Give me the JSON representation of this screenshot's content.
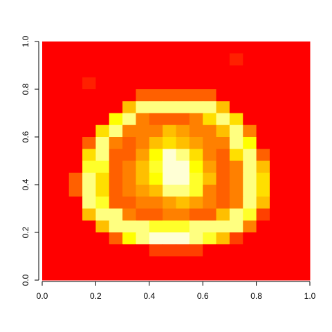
{
  "chart_data": {
    "type": "heatmap",
    "xlim": [
      0,
      1
    ],
    "ylim": [
      0,
      1
    ],
    "xticks": [
      {
        "value": 0,
        "label": "0.0"
      },
      0.2,
      0.4,
      0.6,
      0.8,
      {
        "value": 1,
        "label": "1.0"
      }
    ],
    "yticks": [
      {
        "value": 0,
        "label": "0.0"
      },
      0.2,
      0.4,
      0.6,
      0.8,
      {
        "value": 1,
        "label": "1.0"
      }
    ],
    "colors": [
      "#FF0000",
      "#FF2000",
      "#FF4000",
      "#FF6000",
      "#FF8000",
      "#FF9F00",
      "#FFBF00",
      "#FFDF00",
      "#FFFF00",
      "#FFFF2A",
      "#FFFF80",
      "#FFFFD5"
    ],
    "z": [
      [
        0,
        0,
        0,
        0,
        0,
        0,
        0,
        0,
        0,
        0,
        0,
        0,
        0,
        0,
        0,
        0,
        0,
        0,
        0,
        0
      ],
      [
        0,
        0,
        0,
        0,
        0,
        0,
        0,
        0,
        0,
        0,
        0,
        0,
        0,
        0,
        0.1,
        0,
        0,
        0,
        0,
        0
      ],
      [
        0,
        0,
        0,
        0,
        0,
        0,
        0,
        0,
        0,
        0,
        0,
        0,
        0,
        0,
        0,
        0,
        0,
        0,
        0,
        0
      ],
      [
        0,
        0,
        0,
        0.1,
        0,
        0,
        0,
        0,
        0,
        0,
        0,
        0,
        0,
        0,
        0,
        0,
        0,
        0,
        0,
        0
      ],
      [
        0,
        0,
        0,
        0,
        0,
        0,
        0,
        0.3,
        0.3,
        0.3,
        0.3,
        0.3,
        0.3,
        0,
        0,
        0,
        0,
        0,
        0,
        0
      ],
      [
        0,
        0,
        0,
        0,
        0,
        0,
        0.5,
        0.85,
        0.9,
        0.9,
        0.9,
        0.9,
        0.85,
        0.5,
        0,
        0,
        0,
        0,
        0,
        0
      ],
      [
        0,
        0,
        0,
        0,
        0,
        0.7,
        0.9,
        0.4,
        0.3,
        0.3,
        0.3,
        0.35,
        0.6,
        0.9,
        0.6,
        0,
        0,
        0,
        0,
        0
      ],
      [
        0,
        0,
        0,
        0,
        0.6,
        0.9,
        0.4,
        0.35,
        0.4,
        0.5,
        0.45,
        0.4,
        0.35,
        0.5,
        0.9,
        0.4,
        0,
        0,
        0,
        0
      ],
      [
        0,
        0,
        0,
        0.3,
        0.9,
        0.4,
        0.3,
        0.4,
        0.5,
        0.6,
        0.55,
        0.45,
        0.35,
        0.4,
        0.85,
        0.7,
        0,
        0,
        0,
        0
      ],
      [
        0,
        0,
        0,
        0.6,
        0.9,
        0.3,
        0.3,
        0.45,
        0.7,
        0.95,
        0.85,
        0.6,
        0.4,
        0.3,
        0.6,
        0.9,
        0.3,
        0,
        0,
        0
      ],
      [
        0,
        0,
        0,
        0.8,
        0.8,
        0.3,
        0.4,
        0.5,
        0.8,
        1,
        0.95,
        0.7,
        0.45,
        0.3,
        0.4,
        0.9,
        0.5,
        0,
        0,
        0
      ],
      [
        0,
        0,
        0.3,
        0.9,
        0.6,
        0.3,
        0.4,
        0.5,
        0.7,
        0.95,
        1,
        0.8,
        0.5,
        0.3,
        0.35,
        0.9,
        0.6,
        0,
        0,
        0
      ],
      [
        0,
        0,
        0.3,
        0.9,
        0.6,
        0.3,
        0.35,
        0.45,
        0.55,
        0.85,
        0.9,
        0.75,
        0.4,
        0.3,
        0.35,
        0.9,
        0.6,
        0,
        0,
        0
      ],
      [
        0,
        0,
        0,
        0.85,
        0.8,
        0.3,
        0.3,
        0.35,
        0.4,
        0.45,
        0.5,
        0.45,
        0.35,
        0.3,
        0.4,
        0.9,
        0.5,
        0,
        0,
        0
      ],
      [
        0,
        0,
        0,
        0.5,
        0.9,
        0.85,
        0.4,
        0.3,
        0.3,
        0.35,
        0.35,
        0.3,
        0.3,
        0.5,
        0.9,
        0.8,
        0.2,
        0,
        0,
        0
      ],
      [
        0,
        0,
        0,
        0,
        0.5,
        0.9,
        0.9,
        0.85,
        0.8,
        0.8,
        0.8,
        0.85,
        0.9,
        0.9,
        0.85,
        0.4,
        0,
        0,
        0,
        0
      ],
      [
        0,
        0,
        0,
        0,
        0,
        0.3,
        0.7,
        0.9,
        0.95,
        0.95,
        0.95,
        0.9,
        0.8,
        0.5,
        0.2,
        0,
        0,
        0,
        0,
        0
      ],
      [
        0,
        0,
        0,
        0,
        0,
        0,
        0,
        0,
        0.2,
        0.2,
        0.2,
        0.2,
        0,
        0,
        0,
        0,
        0,
        0,
        0,
        0
      ],
      [
        0,
        0,
        0,
        0,
        0,
        0,
        0,
        0,
        0,
        0,
        0,
        0,
        0,
        0,
        0,
        0,
        0,
        0,
        0,
        0
      ],
      [
        0,
        0,
        0,
        0,
        0,
        0,
        0,
        0,
        0,
        0,
        0,
        0,
        0,
        0,
        0,
        0,
        0,
        0,
        0,
        0
      ]
    ]
  }
}
